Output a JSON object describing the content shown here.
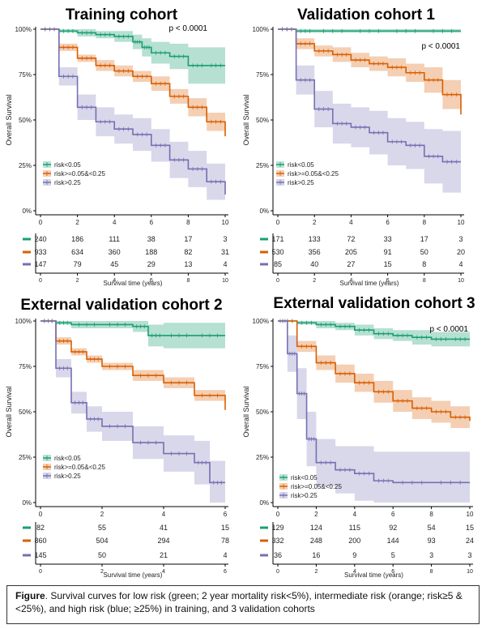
{
  "caption": {
    "label": "Figure",
    "text": ". Survival curves for low risk (green; 2 year mortality risk<5%), intermediate risk (orange; risk≥5 & <25%), and high risk (blue; ≥25%) in training, and 3 validation cohorts"
  },
  "colors": {
    "low": "#1a9e73",
    "mid": "#d95f02",
    "high": "#7570b3"
  },
  "legend": [
    "risk<0.05",
    "risk>=0.05&<0.25",
    "risk>0.25"
  ],
  "chart_data": [
    {
      "type": "line",
      "title": "Training cohort",
      "pvalue": "p < 0.0001",
      "ylabel": "Overall Survival",
      "xlabel": "Survival time (years)",
      "yticks": [
        "0%",
        "25%",
        "50%",
        "75%",
        "100%"
      ],
      "xticks": [
        0,
        2,
        4,
        6,
        8,
        10
      ],
      "xlim": [
        0,
        10
      ],
      "ylim": [
        0,
        1
      ],
      "series": [
        {
          "name": "risk<0.05",
          "x": [
            0,
            1,
            2,
            3,
            4,
            5,
            5.5,
            6,
            7,
            8,
            9,
            10
          ],
          "y": [
            1,
            0.99,
            0.98,
            0.97,
            0.96,
            0.93,
            0.9,
            0.87,
            0.85,
            0.8,
            0.8,
            0.8
          ],
          "ci_width": [
            0,
            0.01,
            0.02,
            0.02,
            0.03,
            0.04,
            0.05,
            0.06,
            0.07,
            0.1,
            0.1,
            0.1
          ]
        },
        {
          "name": "risk>=0.05&<0.25",
          "x": [
            0,
            1,
            2,
            3,
            4,
            5,
            6,
            7,
            8,
            9,
            10
          ],
          "y": [
            1,
            0.9,
            0.84,
            0.8,
            0.77,
            0.74,
            0.7,
            0.63,
            0.57,
            0.49,
            0.41
          ],
          "ci_width": [
            0,
            0.02,
            0.02,
            0.03,
            0.03,
            0.03,
            0.04,
            0.04,
            0.05,
            0.05,
            0.06
          ]
        },
        {
          "name": "risk>0.25",
          "x": [
            0,
            1,
            2,
            3,
            4,
            5,
            6,
            7,
            8,
            9,
            10
          ],
          "y": [
            1,
            0.74,
            0.57,
            0.49,
            0.45,
            0.42,
            0.36,
            0.28,
            0.23,
            0.16,
            0.09
          ],
          "ci_width": [
            0,
            0.05,
            0.07,
            0.08,
            0.08,
            0.09,
            0.09,
            0.1,
            0.1,
            0.1,
            0.1
          ]
        }
      ],
      "risk_table": [
        [
          240,
          186,
          111,
          38,
          17,
          3
        ],
        [
          933,
          634,
          360,
          188,
          82,
          31
        ],
        [
          147,
          79,
          45,
          29,
          13,
          4
        ]
      ]
    },
    {
      "type": "line",
      "title": "Validation cohort 1",
      "pvalue": "p < 0.0001",
      "ylabel": "Overall Survival",
      "xlabel": "Survival time (years)",
      "yticks": [
        "0%",
        "25%",
        "50%",
        "75%",
        "100%"
      ],
      "xticks": [
        0,
        2,
        4,
        6,
        8,
        10
      ],
      "xlim": [
        0,
        10
      ],
      "ylim": [
        0,
        1
      ],
      "series": [
        {
          "name": "risk<0.05",
          "x": [
            0,
            1,
            2,
            4,
            6,
            8,
            10
          ],
          "y": [
            1,
            0.99,
            0.99,
            0.99,
            0.99,
            0.99,
            0.99
          ],
          "ci_width": [
            0,
            0.01,
            0.01,
            0.01,
            0.01,
            0.01,
            0.01
          ]
        },
        {
          "name": "risk>=0.05&<0.25",
          "x": [
            0,
            1,
            2,
            3,
            4,
            5,
            6,
            7,
            8,
            9,
            10
          ],
          "y": [
            1,
            0.92,
            0.88,
            0.86,
            0.83,
            0.81,
            0.79,
            0.76,
            0.72,
            0.64,
            0.53
          ],
          "ci_width": [
            0,
            0.03,
            0.03,
            0.04,
            0.04,
            0.04,
            0.05,
            0.05,
            0.07,
            0.08,
            0.11
          ]
        },
        {
          "name": "risk>0.25",
          "x": [
            0,
            1,
            2,
            3,
            4,
            5,
            6,
            7,
            8,
            9,
            10
          ],
          "y": [
            1,
            0.72,
            0.56,
            0.48,
            0.46,
            0.43,
            0.38,
            0.36,
            0.3,
            0.27,
            0.27
          ],
          "ci_width": [
            0,
            0.08,
            0.1,
            0.11,
            0.11,
            0.12,
            0.13,
            0.13,
            0.15,
            0.17,
            0.17
          ]
        }
      ],
      "risk_table": [
        [
          171,
          133,
          72,
          33,
          17,
          3
        ],
        [
          530,
          356,
          205,
          91,
          50,
          20
        ],
        [
          85,
          40,
          27,
          15,
          8,
          4
        ]
      ]
    },
    {
      "type": "line",
      "title": "External validation cohort 2",
      "pvalue": "",
      "ylabel": "Overall Survival",
      "xlabel": "Survival time (years)",
      "yticks": [
        "0%",
        "25%",
        "50%",
        "75%",
        "100%"
      ],
      "xticks": [
        0,
        2,
        4,
        6
      ],
      "xlim": [
        0,
        6
      ],
      "ylim": [
        0,
        1
      ],
      "series": [
        {
          "name": "risk<0.05",
          "x": [
            0,
            0.5,
            1,
            2,
            3,
            3.5,
            4,
            5,
            6
          ],
          "y": [
            1,
            0.99,
            0.98,
            0.98,
            0.97,
            0.92,
            0.92,
            0.92,
            0.92
          ],
          "ci_width": [
            0,
            0.01,
            0.02,
            0.02,
            0.03,
            0.06,
            0.07,
            0.07,
            0.07
          ]
        },
        {
          "name": "risk>=0.05&<0.25",
          "x": [
            0,
            0.5,
            1,
            1.5,
            2,
            3,
            4,
            5,
            6
          ],
          "y": [
            1,
            0.89,
            0.83,
            0.79,
            0.75,
            0.7,
            0.66,
            0.59,
            0.51
          ],
          "ci_width": [
            0,
            0.02,
            0.02,
            0.02,
            0.02,
            0.03,
            0.03,
            0.03,
            0.04
          ]
        },
        {
          "name": "risk>0.25",
          "x": [
            0,
            0.5,
            1,
            1.5,
            2,
            3,
            4,
            5,
            5.5,
            6
          ],
          "y": [
            1,
            0.74,
            0.55,
            0.46,
            0.42,
            0.33,
            0.27,
            0.22,
            0.11,
            0.11
          ],
          "ci_width": [
            0,
            0.05,
            0.06,
            0.07,
            0.08,
            0.09,
            0.1,
            0.12,
            0.12,
            0.12
          ]
        }
      ],
      "risk_table": [
        [
          82,
          55,
          41,
          15
        ],
        [
          860,
          504,
          294,
          78
        ],
        [
          145,
          50,
          21,
          4
        ]
      ]
    },
    {
      "type": "line",
      "title": "External validation cohort 3",
      "pvalue": "p < 0.0001",
      "ylabel": "Overall Survival",
      "xlabel": "Survival time (years)",
      "yticks": [
        "0%",
        "25%",
        "50%",
        "75%",
        "100%"
      ],
      "xticks": [
        0,
        2,
        4,
        6,
        8,
        10
      ],
      "xlim": [
        0,
        10
      ],
      "ylim": [
        0,
        1
      ],
      "series": [
        {
          "name": "risk<0.05",
          "x": [
            0,
            1,
            2,
            3,
            4,
            5,
            6,
            7,
            8,
            9,
            10
          ],
          "y": [
            1,
            0.99,
            0.98,
            0.97,
            0.95,
            0.93,
            0.92,
            0.91,
            0.9,
            0.9,
            0.9
          ],
          "ci_width": [
            0,
            0.01,
            0.02,
            0.02,
            0.03,
            0.03,
            0.03,
            0.04,
            0.04,
            0.04,
            0.04
          ]
        },
        {
          "name": "risk>=0.05&<0.25",
          "x": [
            0,
            1,
            2,
            3,
            4,
            5,
            6,
            7,
            8,
            9,
            10
          ],
          "y": [
            1,
            0.86,
            0.77,
            0.71,
            0.66,
            0.61,
            0.56,
            0.52,
            0.5,
            0.47,
            0.45
          ],
          "ci_width": [
            0,
            0.03,
            0.04,
            0.05,
            0.05,
            0.06,
            0.06,
            0.06,
            0.06,
            0.06,
            0.06
          ]
        },
        {
          "name": "risk>0.25",
          "x": [
            0,
            0.5,
            1,
            1.5,
            2,
            3,
            4,
            5,
            6,
            8,
            10
          ],
          "y": [
            1,
            0.82,
            0.6,
            0.35,
            0.22,
            0.18,
            0.16,
            0.12,
            0.11,
            0.11,
            0.11
          ],
          "ci_width": [
            0,
            0.1,
            0.14,
            0.15,
            0.13,
            0.13,
            0.15,
            0.16,
            0.17,
            0.17,
            0.17
          ]
        }
      ],
      "risk_table": [
        [
          129,
          124,
          115,
          92,
          54,
          15
        ],
        [
          332,
          248,
          200,
          144,
          93,
          24
        ],
        [
          36,
          16,
          9,
          5,
          3,
          3
        ]
      ]
    }
  ]
}
